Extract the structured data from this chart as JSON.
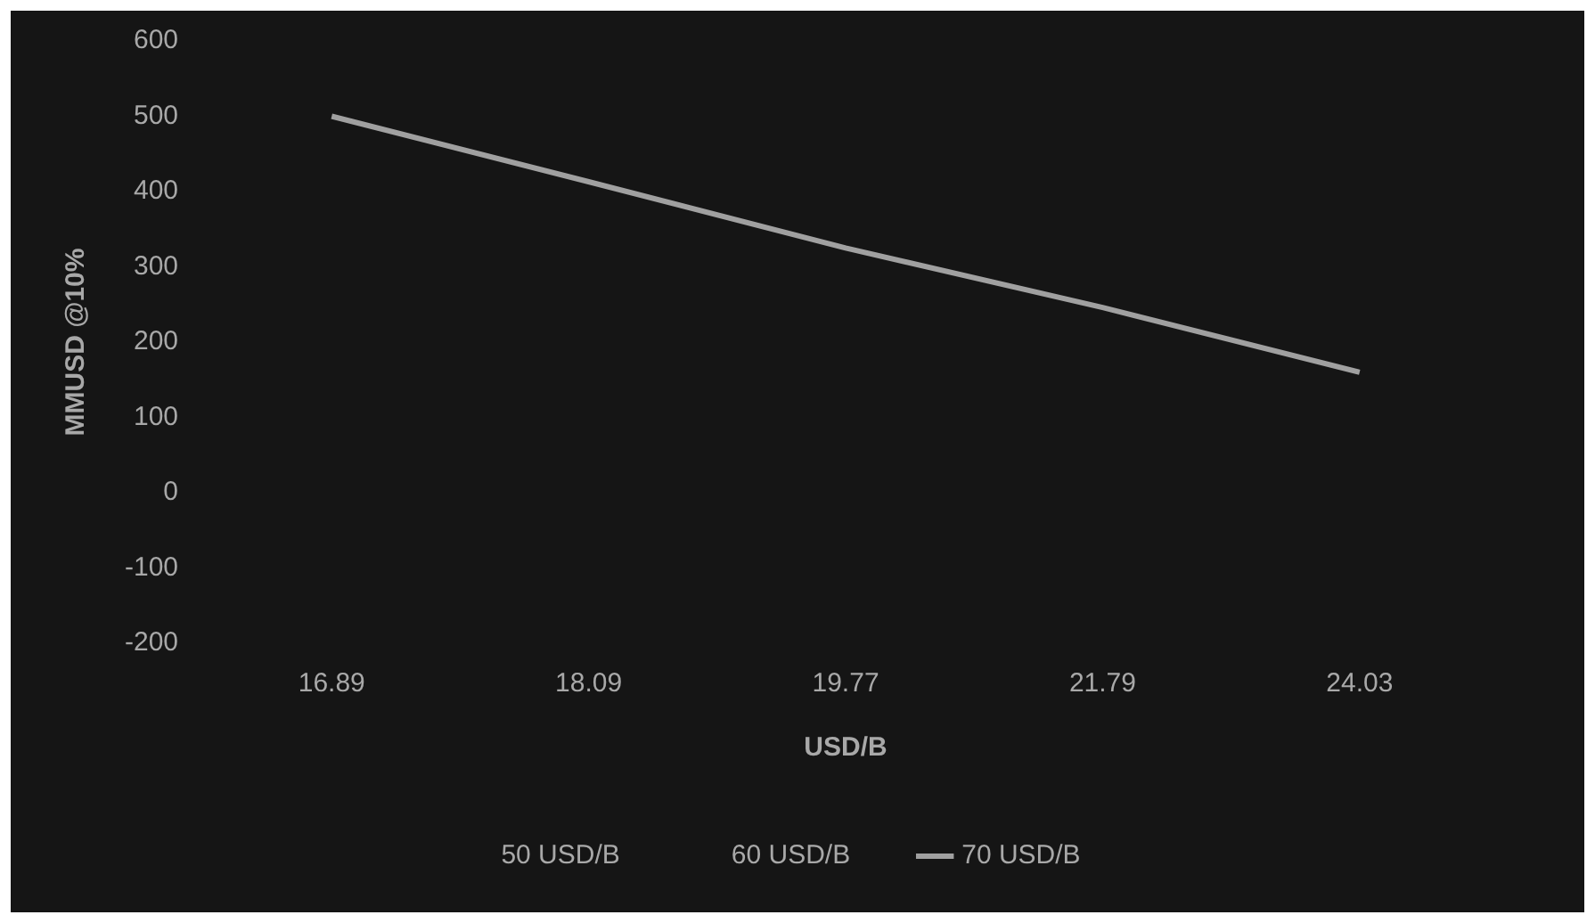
{
  "chart_data": {
    "type": "line",
    "xlabel": "USD/B",
    "ylabel": "MMUSD @10%",
    "categories": [
      "16.89",
      "18.09",
      "19.77",
      "21.79",
      "24.03"
    ],
    "series": [
      {
        "name": "50 USD/B",
        "values": [
          null,
          null,
          null,
          null,
          null
        ]
      },
      {
        "name": "60 USD/B",
        "values": [
          null,
          null,
          null,
          null,
          null
        ]
      },
      {
        "name": "70 USD/B",
        "color": "#a0a0a0",
        "values": [
          500,
          413,
          325,
          246,
          160
        ]
      }
    ],
    "ylim": [
      -200,
      600
    ],
    "yticks": [
      -200,
      -100,
      0,
      100,
      200,
      300,
      400,
      500,
      600
    ],
    "legend": "bottom",
    "marker": "none",
    "line_style": "solid"
  }
}
